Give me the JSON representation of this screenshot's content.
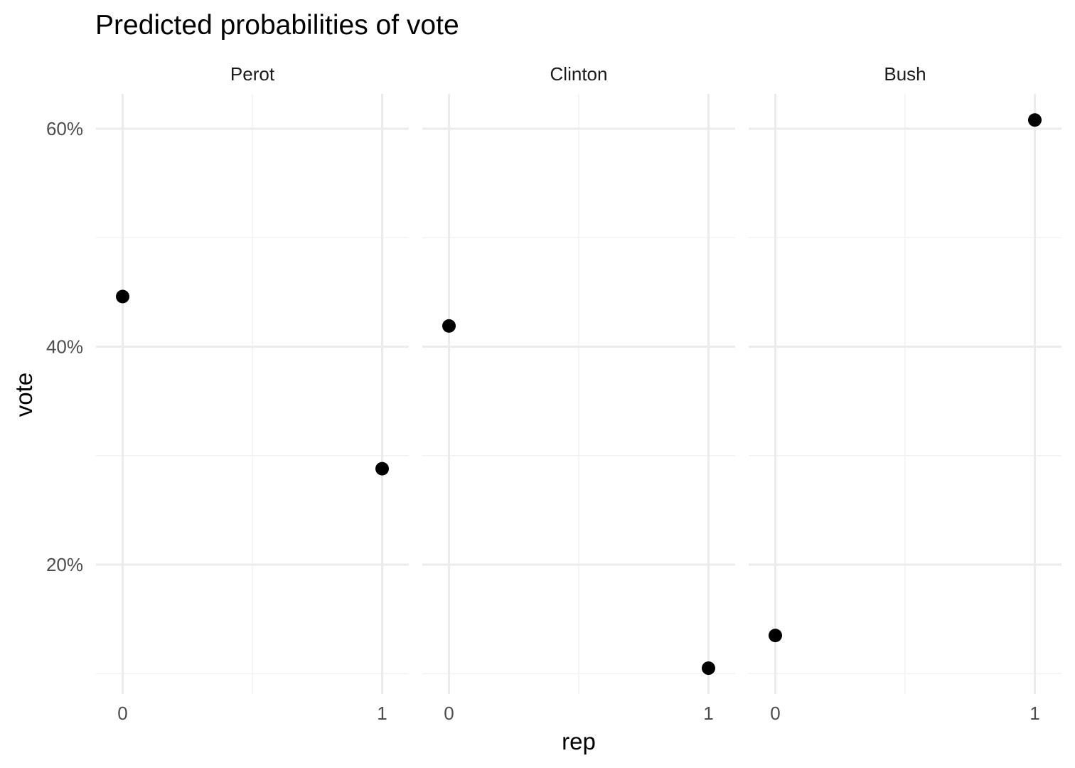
{
  "chart_data": {
    "type": "scatter",
    "title": "Predicted probabilities of vote",
    "xlabel": "rep",
    "ylabel": "vote",
    "x_ticks": [
      "0",
      "1"
    ],
    "y_ticks": [
      {
        "value": 0.2,
        "label": "20%"
      },
      {
        "value": 0.4,
        "label": "40%"
      },
      {
        "value": 0.6,
        "label": "60%"
      }
    ],
    "ylim": [
      0.1,
      0.6
    ],
    "grid": true,
    "facets": [
      {
        "name": "Perot",
        "points": [
          {
            "x": 0,
            "y": 0.446
          },
          {
            "x": 1,
            "y": 0.288
          }
        ]
      },
      {
        "name": "Clinton",
        "points": [
          {
            "x": 0,
            "y": 0.419
          },
          {
            "x": 1,
            "y": 0.105
          }
        ]
      },
      {
        "name": "Bush",
        "points": [
          {
            "x": 0,
            "y": 0.135
          },
          {
            "x": 1,
            "y": 0.608
          }
        ]
      }
    ]
  },
  "colors": {
    "point": "#000000",
    "grid_major": "#ebebeb",
    "grid_minor": "#f2f2f2"
  }
}
